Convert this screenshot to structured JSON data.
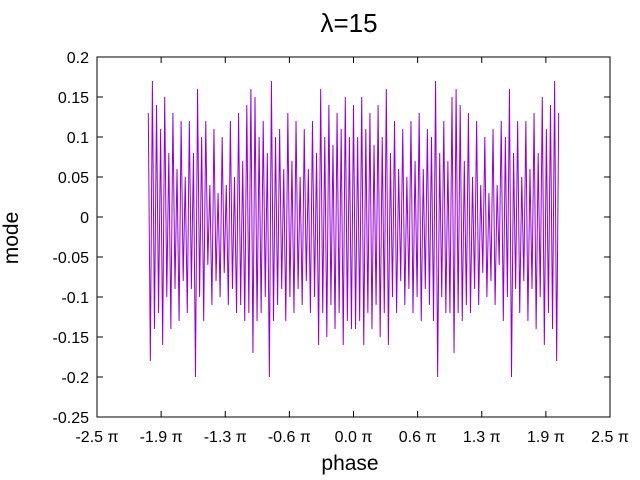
{
  "chart_data": {
    "type": "line",
    "title": "λ=15",
    "xlabel": "phase",
    "ylabel": "mode",
    "xlim": [
      -2.5,
      2.5
    ],
    "ylim": [
      -0.25,
      0.2
    ],
    "x_unit": "π",
    "x_ticks": [
      {
        "value": -2.5,
        "label": "-2.5 π"
      },
      {
        "value": -1.875,
        "label": "-1.9 π"
      },
      {
        "value": -1.25,
        "label": "-1.3 π"
      },
      {
        "value": -0.625,
        "label": "-0.6 π"
      },
      {
        "value": 0.0,
        "label": "0.0 π"
      },
      {
        "value": 0.625,
        "label": "0.6 π"
      },
      {
        "value": 1.25,
        "label": "1.3 π"
      },
      {
        "value": 1.875,
        "label": "1.9 π"
      },
      {
        "value": 2.5,
        "label": "2.5 π"
      }
    ],
    "y_ticks": [
      {
        "value": 0.2,
        "label": "0.2"
      },
      {
        "value": 0.15,
        "label": "0.15"
      },
      {
        "value": 0.1,
        "label": "0.1"
      },
      {
        "value": 0.05,
        "label": "0.05"
      },
      {
        "value": 0.0,
        "label": "0"
      },
      {
        "value": -0.05,
        "label": "-0.05"
      },
      {
        "value": -0.1,
        "label": "-0.1"
      },
      {
        "value": -0.15,
        "label": "-0.15"
      },
      {
        "value": -0.2,
        "label": "-0.2"
      },
      {
        "value": -0.25,
        "label": "-0.25"
      }
    ],
    "grid": false,
    "legend": "none",
    "series": [
      {
        "color": "#9400d3",
        "x": [
          -2.0,
          -1.98,
          -1.96,
          -1.94,
          -1.92,
          -1.9,
          -1.88,
          -1.86,
          -1.84,
          -1.82,
          -1.8,
          -1.78,
          -1.76,
          -1.74,
          -1.72,
          -1.7,
          -1.68,
          -1.66,
          -1.64,
          -1.62,
          -1.6,
          -1.58,
          -1.56,
          -1.54,
          -1.52,
          -1.5,
          -1.48,
          -1.46,
          -1.44,
          -1.42,
          -1.4,
          -1.38,
          -1.36,
          -1.34,
          -1.32,
          -1.3,
          -1.28,
          -1.26,
          -1.24,
          -1.22,
          -1.2,
          -1.18,
          -1.16,
          -1.14,
          -1.12,
          -1.1,
          -1.08,
          -1.06,
          -1.04,
          -1.02,
          -1.0,
          -0.98,
          -0.96,
          -0.94,
          -0.92,
          -0.9,
          -0.88,
          -0.86,
          -0.84,
          -0.82,
          -0.8,
          -0.78,
          -0.76,
          -0.74,
          -0.72,
          -0.7,
          -0.68,
          -0.66,
          -0.64,
          -0.62,
          -0.6,
          -0.58,
          -0.56,
          -0.54,
          -0.52,
          -0.5,
          -0.48,
          -0.46,
          -0.44,
          -0.42,
          -0.4,
          -0.38,
          -0.36,
          -0.34,
          -0.32,
          -0.3,
          -0.28,
          -0.26,
          -0.24,
          -0.22,
          -0.2,
          -0.18,
          -0.16,
          -0.14,
          -0.12,
          -0.1,
          -0.08,
          -0.06,
          -0.04,
          -0.02,
          0.0,
          0.02,
          0.04,
          0.06,
          0.08,
          0.1,
          0.12,
          0.14,
          0.16,
          0.18,
          0.2,
          0.22,
          0.24,
          0.26,
          0.28,
          0.3,
          0.32,
          0.34,
          0.36,
          0.38,
          0.4,
          0.42,
          0.44,
          0.46,
          0.48,
          0.5,
          0.52,
          0.54,
          0.56,
          0.58,
          0.6,
          0.62,
          0.64,
          0.66,
          0.68,
          0.7,
          0.72,
          0.74,
          0.76,
          0.78,
          0.8,
          0.82,
          0.84,
          0.86,
          0.88,
          0.9,
          0.92,
          0.94,
          0.96,
          0.98,
          1.0,
          1.02,
          1.04,
          1.06,
          1.08,
          1.1,
          1.12,
          1.14,
          1.16,
          1.18,
          1.2,
          1.22,
          1.24,
          1.26,
          1.28,
          1.3,
          1.32,
          1.34,
          1.36,
          1.38,
          1.4,
          1.42,
          1.44,
          1.46,
          1.48,
          1.5,
          1.52,
          1.54,
          1.56,
          1.58,
          1.6,
          1.62,
          1.64,
          1.66,
          1.68,
          1.7,
          1.72,
          1.74,
          1.76,
          1.78,
          1.8,
          1.82,
          1.84,
          1.86,
          1.88,
          1.9,
          1.92,
          1.94,
          1.96,
          1.98,
          2.0
        ],
        "y": [
          0.13,
          -0.18,
          0.17,
          -0.14,
          0.14,
          -0.12,
          0.11,
          -0.16,
          0.15,
          -0.1,
          0.08,
          -0.14,
          0.13,
          -0.09,
          0.06,
          -0.13,
          0.12,
          -0.08,
          0.05,
          -0.12,
          0.12,
          -0.09,
          0.08,
          -0.2,
          0.16,
          -0.1,
          0.1,
          -0.13,
          0.12,
          -0.06,
          0.04,
          -0.11,
          0.11,
          -0.08,
          0.03,
          -0.1,
          0.1,
          -0.07,
          0.04,
          -0.11,
          0.12,
          -0.09,
          0.05,
          -0.12,
          0.13,
          -0.11,
          0.07,
          -0.13,
          0.14,
          -0.12,
          0.16,
          -0.17,
          0.15,
          -0.13,
          0.1,
          -0.12,
          0.12,
          -0.1,
          0.08,
          -0.2,
          0.17,
          -0.13,
          0.1,
          -0.11,
          0.11,
          -0.09,
          0.06,
          -0.13,
          0.13,
          -0.1,
          0.07,
          -0.12,
          0.12,
          -0.09,
          0.05,
          -0.11,
          0.11,
          -0.08,
          0.06,
          -0.12,
          0.12,
          -0.1,
          0.08,
          -0.16,
          0.16,
          -0.12,
          0.1,
          -0.15,
          0.14,
          -0.11,
          0.09,
          -0.14,
          0.13,
          -0.12,
          0.11,
          -0.16,
          0.15,
          -0.13,
          0.1,
          -0.14,
          0.14,
          -0.14,
          0.1,
          -0.13,
          0.15,
          -0.16,
          0.11,
          -0.12,
          0.13,
          -0.14,
          0.09,
          -0.11,
          0.14,
          -0.15,
          0.1,
          -0.12,
          0.16,
          -0.16,
          0.08,
          -0.1,
          0.12,
          -0.12,
          0.06,
          -0.08,
          0.11,
          -0.11,
          0.05,
          -0.09,
          0.12,
          -0.12,
          0.07,
          -0.1,
          0.13,
          -0.13,
          0.06,
          -0.09,
          0.11,
          -0.11,
          0.1,
          -0.13,
          0.17,
          -0.2,
          0.08,
          -0.1,
          0.12,
          -0.12,
          0.07,
          -0.12,
          0.15,
          -0.17,
          0.16,
          -0.12,
          0.14,
          -0.13,
          0.07,
          -0.11,
          0.13,
          -0.12,
          0.05,
          -0.09,
          0.12,
          -0.11,
          0.04,
          -0.07,
          0.1,
          -0.1,
          0.03,
          -0.08,
          0.11,
          -0.11,
          0.04,
          -0.06,
          0.12,
          -0.13,
          0.1,
          -0.1,
          0.16,
          -0.2,
          0.08,
          -0.09,
          0.12,
          -0.12,
          0.05,
          -0.08,
          0.12,
          -0.13,
          0.06,
          -0.09,
          0.13,
          -0.14,
          0.08,
          -0.1,
          0.15,
          -0.16,
          0.11,
          -0.12,
          0.14,
          -0.14,
          0.17,
          -0.18,
          0.13
        ]
      }
    ]
  }
}
